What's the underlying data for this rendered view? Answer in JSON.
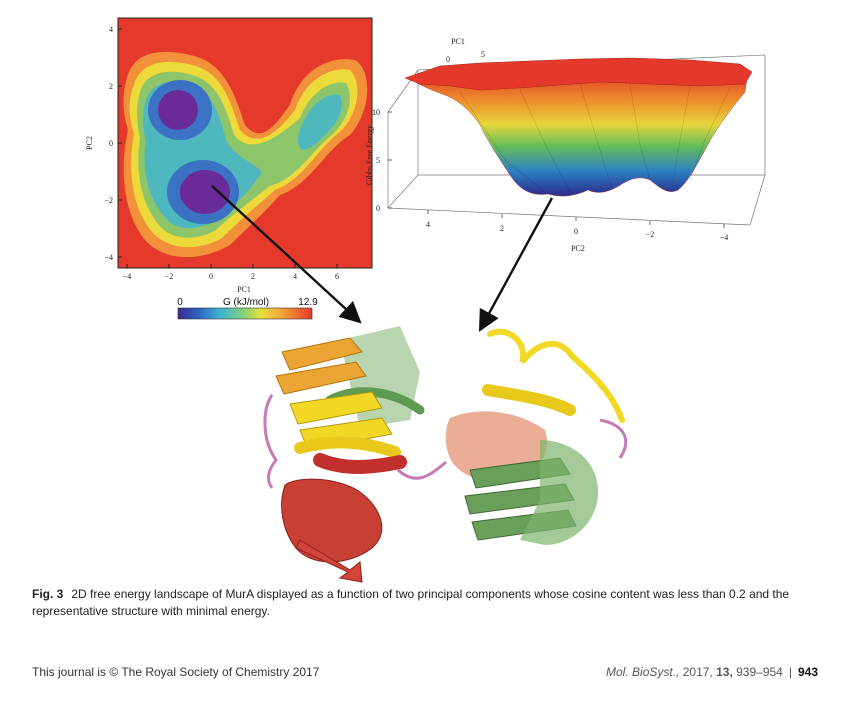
{
  "figure": {
    "contour_plot": {
      "xlabel": "PC1",
      "ylabel": "PC2",
      "x_ticks": [
        "−4",
        "−2",
        "0",
        "2",
        "4",
        "6"
      ],
      "y_ticks": [
        "4",
        "2",
        "0",
        "−2",
        "−4"
      ]
    },
    "colorbar": {
      "min_label": "0",
      "title": "G (kJ/mol)",
      "max_label": "12.9"
    },
    "surface_plot": {
      "top_axis_label": "PC1",
      "top_ticks": [
        "0",
        "5"
      ],
      "zlabel": "Gibbs Free Energy",
      "z_ticks": [
        "10",
        "5",
        "0"
      ],
      "bottom_axis_label": "PC2",
      "bottom_ticks": [
        "4",
        "2",
        "0",
        "−2",
        "−4"
      ]
    }
  },
  "caption": {
    "label": "Fig. 3",
    "text": "2D free energy landscape of MurA displayed as a function of two principal components whose cosine content was less than 0.2 and the representative structure with minimal energy."
  },
  "footer": {
    "left": "This journal is © The Royal Society of Chemistry 2017",
    "journal": "Mol. BioSyst.,",
    "year": "2017,",
    "volume": "13,",
    "pages": "939–954",
    "separator": "|",
    "page_number": "943"
  },
  "colors": {
    "high_energy": "#e53a2b",
    "low_energy": "#6a2a9a",
    "helix_red": "#c2302e",
    "strand_yellow": "#f2d824",
    "strand_orange": "#eaa533",
    "green_domain": "#6a9f5a",
    "salmon_domain": "#e8a58c",
    "loop_magenta": "#c57ab6"
  }
}
